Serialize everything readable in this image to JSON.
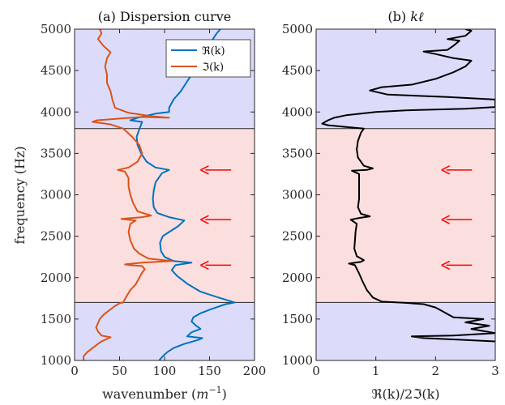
{
  "ylabel": "frequency (Hz)",
  "colors": {
    "real": "#0072BD",
    "imag": "#D95319",
    "kl": "#000000",
    "arrow": "#FF0000",
    "band_blue": "#DCDCFA",
    "band_pink": "#FBDEDE",
    "axis": "#262626"
  },
  "chart_data": [
    {
      "type": "line",
      "title": "(a) Dispersion curve",
      "xlabel": "wavenumber (m^-1)",
      "xlabel_parts": [
        "wavenumber (",
        "m",
        "−1",
        ")"
      ],
      "ylabel": "frequency (Hz)",
      "xlim": [
        0,
        200
      ],
      "ylim": [
        1000,
        5000
      ],
      "xticks": [
        0,
        50,
        100,
        150,
        200
      ],
      "yticks": [
        1000,
        1500,
        2000,
        2500,
        3000,
        3500,
        4000,
        4500,
        5000
      ],
      "xtick_labels": [
        "0",
        "50",
        "100",
        "150",
        "200"
      ],
      "ytick_labels": [
        "1000",
        "1500",
        "2000",
        "2500",
        "3000",
        "3500",
        "4000",
        "4500",
        "5000"
      ],
      "bands": [
        {
          "y": [
            1000,
            1700
          ],
          "color": "blue"
        },
        {
          "y": [
            1700,
            3800
          ],
          "color": "pink"
        },
        {
          "y": [
            3800,
            5000
          ],
          "color": "blue"
        }
      ],
      "legend": {
        "position": "top-right",
        "entries": [
          "ℜ(k)",
          "ℑ(k)"
        ]
      },
      "arrows_y": [
        3300,
        2700,
        2150
      ],
      "series": [
        {
          "name": "ℜ(k)",
          "color": "real",
          "points": [
            [
              94,
              1000
            ],
            [
              98,
              1050
            ],
            [
              103,
              1100
            ],
            [
              110,
              1150
            ],
            [
              122,
              1200
            ],
            [
              138,
              1250
            ],
            [
              142,
              1270
            ],
            [
              125,
              1290
            ],
            [
              130,
              1340
            ],
            [
              140,
              1380
            ],
            [
              135,
              1420
            ],
            [
              130,
              1470
            ],
            [
              132,
              1520
            ],
            [
              140,
              1570
            ],
            [
              152,
              1620
            ],
            [
              168,
              1680
            ],
            [
              178,
              1700
            ],
            [
              160,
              1760
            ],
            [
              140,
              1830
            ],
            [
              126,
              1920
            ],
            [
              114,
              2020
            ],
            [
              108,
              2090
            ],
            [
              112,
              2150
            ],
            [
              130,
              2180
            ],
            [
              110,
              2200
            ],
            [
              100,
              2250
            ],
            [
              96,
              2320
            ],
            [
              95,
              2420
            ],
            [
              98,
              2500
            ],
            [
              105,
              2550
            ],
            [
              115,
              2620
            ],
            [
              122,
              2690
            ],
            [
              105,
              2730
            ],
            [
              92,
              2780
            ],
            [
              88,
              2850
            ],
            [
              87,
              2950
            ],
            [
              88,
              3050
            ],
            [
              90,
              3150
            ],
            [
              97,
              3260
            ],
            [
              105,
              3300
            ],
            [
              90,
              3330
            ],
            [
              80,
              3400
            ],
            [
              74,
              3500
            ],
            [
              70,
              3600
            ],
            [
              69,
              3700
            ],
            [
              72,
              3790
            ],
            [
              75,
              3880
            ],
            [
              62,
              3900
            ],
            [
              70,
              3930
            ],
            [
              90,
              3980
            ],
            [
              105,
              4000
            ],
            [
              105,
              4050
            ],
            [
              110,
              4150
            ],
            [
              118,
              4250
            ],
            [
              124,
              4350
            ],
            [
              130,
              4450
            ],
            [
              135,
              4550
            ],
            [
              140,
              4650
            ],
            [
              145,
              4750
            ],
            [
              152,
              4850
            ],
            [
              158,
              4950
            ],
            [
              162,
              5000
            ]
          ]
        },
        {
          "name": "ℑ(k)",
          "color": "imag",
          "points": [
            [
              10,
              1000
            ],
            [
              10,
              1050
            ],
            [
              14,
              1100
            ],
            [
              20,
              1150
            ],
            [
              26,
              1200
            ],
            [
              30,
              1230
            ],
            [
              40,
              1280
            ],
            [
              30,
              1300
            ],
            [
              26,
              1350
            ],
            [
              24,
              1400
            ],
            [
              26,
              1450
            ],
            [
              28,
              1500
            ],
            [
              32,
              1550
            ],
            [
              38,
              1600
            ],
            [
              44,
              1650
            ],
            [
              50,
              1690
            ],
            [
              54,
              1700
            ],
            [
              58,
              1780
            ],
            [
              62,
              1850
            ],
            [
              68,
              1920
            ],
            [
              72,
              2000
            ],
            [
              75,
              2060
            ],
            [
              78,
              2100
            ],
            [
              75,
              2140
            ],
            [
              62,
              2150
            ],
            [
              56,
              2160
            ],
            [
              75,
              2180
            ],
            [
              108,
              2200
            ],
            [
              82,
              2230
            ],
            [
              72,
              2290
            ],
            [
              66,
              2350
            ],
            [
              62,
              2450
            ],
            [
              60,
              2550
            ],
            [
              62,
              2650
            ],
            [
              68,
              2690
            ],
            [
              52,
              2710
            ],
            [
              75,
              2730
            ],
            [
              85,
              2750
            ],
            [
              70,
              2800
            ],
            [
              65,
              2900
            ],
            [
              62,
              3000
            ],
            [
              60,
              3100
            ],
            [
              60,
              3200
            ],
            [
              56,
              3280
            ],
            [
              48,
              3300
            ],
            [
              60,
              3330
            ],
            [
              70,
              3400
            ],
            [
              75,
              3500
            ],
            [
              72,
              3600
            ],
            [
              64,
              3700
            ],
            [
              54,
              3800
            ],
            [
              40,
              3850
            ],
            [
              20,
              3880
            ],
            [
              25,
              3900
            ],
            [
              50,
              3920
            ],
            [
              75,
              3940
            ],
            [
              105,
              3930
            ],
            [
              85,
              3950
            ],
            [
              60,
              3990
            ],
            [
              45,
              4050
            ],
            [
              42,
              4150
            ],
            [
              40,
              4250
            ],
            [
              36,
              4350
            ],
            [
              36,
              4450
            ],
            [
              34,
              4550
            ],
            [
              36,
              4650
            ],
            [
              40,
              4720
            ],
            [
              32,
              4800
            ],
            [
              26,
              4880
            ],
            [
              30,
              4950
            ],
            [
              28,
              5000
            ]
          ]
        }
      ]
    },
    {
      "type": "line",
      "title": "(b) kℓ",
      "title_parts": [
        "(b) ",
        "kℓ"
      ],
      "xlabel": "ℜ(k)/2ℑ(k)",
      "xlim": [
        0,
        3
      ],
      "ylim": [
        1000,
        5000
      ],
      "xticks": [
        0,
        1,
        2,
        3
      ],
      "yticks": [
        1000,
        1500,
        2000,
        2500,
        3000,
        3500,
        4000,
        4500,
        5000
      ],
      "xtick_labels": [
        "0",
        "1",
        "2",
        "3"
      ],
      "ytick_labels": [
        "1000",
        "1500",
        "2000",
        "2500",
        "3000",
        "3500",
        "4000",
        "4500",
        "5000"
      ],
      "bands": [
        {
          "y": [
            1000,
            1700
          ],
          "color": "blue"
        },
        {
          "y": [
            1700,
            3800
          ],
          "color": "pink"
        },
        {
          "y": [
            3800,
            5000
          ],
          "color": "blue"
        }
      ],
      "arrows_y": [
        3300,
        2700,
        2150
      ],
      "series": [
        {
          "name": "",
          "color": "kl",
          "points": [
            [
              3,
              1230
            ],
            [
              2.4,
              1250
            ],
            [
              1.8,
              1270
            ],
            [
              1.6,
              1290
            ],
            [
              2.3,
              1300
            ],
            [
              3,
              1330
            ],
            [
              2.6,
              1380
            ],
            [
              2.9,
              1420
            ],
            [
              2.5,
              1460
            ],
            [
              2.8,
              1500
            ],
            [
              2.3,
              1520
            ],
            [
              2.2,
              1560
            ],
            [
              2.1,
              1600
            ],
            [
              2.0,
              1640
            ],
            [
              1.8,
              1680
            ],
            [
              1.5,
              1695
            ],
            [
              1.1,
              1710
            ],
            [
              0.95,
              1760
            ],
            [
              0.85,
              1850
            ],
            [
              0.78,
              1950
            ],
            [
              0.72,
              2050
            ],
            [
              0.65,
              2150
            ],
            [
              0.55,
              2170
            ],
            [
              0.75,
              2190
            ],
            [
              0.8,
              2210
            ],
            [
              0.68,
              2260
            ],
            [
              0.64,
              2350
            ],
            [
              0.65,
              2450
            ],
            [
              0.66,
              2550
            ],
            [
              0.68,
              2650
            ],
            [
              0.58,
              2700
            ],
            [
              0.72,
              2720
            ],
            [
              0.9,
              2740
            ],
            [
              0.75,
              2770
            ],
            [
              0.7,
              2850
            ],
            [
              0.72,
              2950
            ],
            [
              0.72,
              3100
            ],
            [
              0.72,
              3250
            ],
            [
              0.6,
              3290
            ],
            [
              0.85,
              3300
            ],
            [
              0.95,
              3320
            ],
            [
              0.8,
              3350
            ],
            [
              0.7,
              3450
            ],
            [
              0.68,
              3550
            ],
            [
              0.7,
              3650
            ],
            [
              0.75,
              3750
            ],
            [
              0.8,
              3800
            ],
            [
              0.5,
              3820
            ],
            [
              0.2,
              3840
            ],
            [
              0.1,
              3860
            ],
            [
              0.15,
              3880
            ],
            [
              0.2,
              3900
            ],
            [
              0.3,
              3930
            ],
            [
              0.5,
              3960
            ],
            [
              1.0,
              4000
            ],
            [
              1.5,
              4020
            ],
            [
              2.5,
              4040
            ],
            [
              3,
              4060
            ],
            [
              3,
              4150
            ],
            [
              2.2,
              4180
            ],
            [
              1.2,
              4210
            ],
            [
              0.9,
              4260
            ],
            [
              1.1,
              4300
            ],
            [
              1.6,
              4330
            ],
            [
              2.0,
              4400
            ],
            [
              2.3,
              4480
            ],
            [
              2.5,
              4550
            ],
            [
              2.6,
              4620
            ],
            [
              2.3,
              4650
            ],
            [
              2.0,
              4700
            ],
            [
              1.8,
              4730
            ],
            [
              2.2,
              4750
            ],
            [
              2.3,
              4800
            ],
            [
              2.4,
              4860
            ],
            [
              2.2,
              4880
            ],
            [
              2.5,
              4920
            ],
            [
              2.6,
              4980
            ],
            [
              2.5,
              5000
            ]
          ]
        }
      ]
    }
  ]
}
